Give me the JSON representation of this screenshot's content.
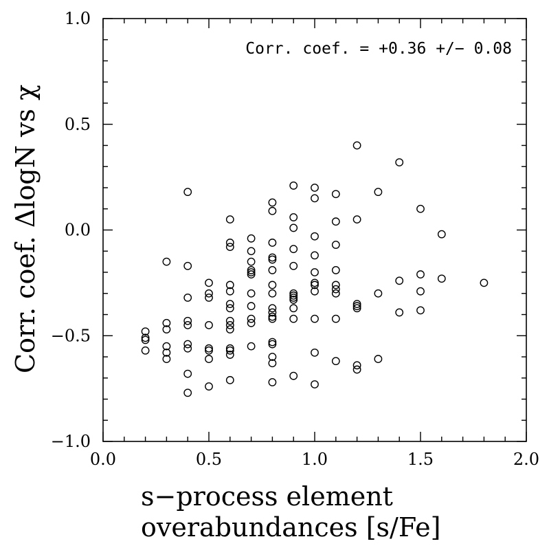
{
  "chart_data": {
    "type": "scatter",
    "xlabel_lines": [
      "s−process element",
      "overabundances [s/Fe]"
    ],
    "ylabel": "Corr. coef. ΔlogN vs χ",
    "annotation": "Corr. coef. = +0.36 +/− 0.08",
    "xlim": [
      0.0,
      2.0
    ],
    "ylim": [
      -1.0,
      1.0
    ],
    "xticks": [
      0.0,
      0.5,
      1.0,
      1.5,
      2.0
    ],
    "yticks": [
      -1.0,
      -0.5,
      0.0,
      0.5,
      1.0
    ],
    "xtick_labels": [
      "0.0",
      "0.5",
      "1.0",
      "1.5",
      "2.0"
    ],
    "ytick_labels": [
      "−1.0",
      "−0.5",
      "0.0",
      "0.5",
      "1.0"
    ],
    "marker": "open-circle",
    "grid": false,
    "points": [
      [
        0.2,
        -0.48
      ],
      [
        0.2,
        -0.52
      ],
      [
        0.2,
        -0.57
      ],
      [
        0.2,
        -0.51
      ],
      [
        0.3,
        -0.15
      ],
      [
        0.3,
        -0.44
      ],
      [
        0.3,
        -0.47
      ],
      [
        0.3,
        -0.55
      ],
      [
        0.3,
        -0.58
      ],
      [
        0.3,
        -0.61
      ],
      [
        0.4,
        0.18
      ],
      [
        0.4,
        -0.17
      ],
      [
        0.4,
        -0.32
      ],
      [
        0.4,
        -0.43
      ],
      [
        0.4,
        -0.45
      ],
      [
        0.4,
        -0.54
      ],
      [
        0.4,
        -0.56
      ],
      [
        0.4,
        -0.68
      ],
      [
        0.4,
        -0.77
      ],
      [
        0.5,
        -0.25
      ],
      [
        0.5,
        -0.3
      ],
      [
        0.5,
        -0.32
      ],
      [
        0.5,
        -0.45
      ],
      [
        0.5,
        -0.56
      ],
      [
        0.5,
        -0.57
      ],
      [
        0.5,
        -0.61
      ],
      [
        0.5,
        -0.74
      ],
      [
        0.6,
        0.05
      ],
      [
        0.6,
        -0.06
      ],
      [
        0.6,
        -0.08
      ],
      [
        0.6,
        -0.26
      ],
      [
        0.6,
        -0.29
      ],
      [
        0.6,
        -0.35
      ],
      [
        0.6,
        -0.37
      ],
      [
        0.6,
        -0.43
      ],
      [
        0.6,
        -0.45
      ],
      [
        0.6,
        -0.47
      ],
      [
        0.6,
        -0.56
      ],
      [
        0.6,
        -0.57
      ],
      [
        0.6,
        -0.59
      ],
      [
        0.6,
        -0.71
      ],
      [
        0.7,
        -0.04
      ],
      [
        0.7,
        -0.1
      ],
      [
        0.7,
        -0.15
      ],
      [
        0.7,
        -0.19
      ],
      [
        0.7,
        -0.2
      ],
      [
        0.7,
        -0.21
      ],
      [
        0.7,
        -0.3
      ],
      [
        0.7,
        -0.36
      ],
      [
        0.7,
        -0.42
      ],
      [
        0.7,
        -0.44
      ],
      [
        0.7,
        -0.55
      ],
      [
        0.8,
        0.13
      ],
      [
        0.8,
        0.09
      ],
      [
        0.8,
        -0.06
      ],
      [
        0.8,
        -0.13
      ],
      [
        0.8,
        -0.14
      ],
      [
        0.8,
        -0.19
      ],
      [
        0.8,
        -0.26
      ],
      [
        0.8,
        -0.3
      ],
      [
        0.8,
        -0.37
      ],
      [
        0.8,
        -0.39
      ],
      [
        0.8,
        -0.41
      ],
      [
        0.8,
        -0.42
      ],
      [
        0.8,
        -0.53
      ],
      [
        0.8,
        -0.54
      ],
      [
        0.8,
        -0.6
      ],
      [
        0.8,
        -0.63
      ],
      [
        0.8,
        -0.72
      ],
      [
        0.9,
        0.21
      ],
      [
        0.9,
        0.06
      ],
      [
        0.9,
        0.01
      ],
      [
        0.9,
        -0.09
      ],
      [
        0.9,
        -0.17
      ],
      [
        0.9,
        -0.3
      ],
      [
        0.9,
        -0.31
      ],
      [
        0.9,
        -0.32
      ],
      [
        0.9,
        -0.33
      ],
      [
        0.9,
        -0.37
      ],
      [
        0.9,
        -0.42
      ],
      [
        0.9,
        -0.69
      ],
      [
        1.0,
        0.2
      ],
      [
        1.0,
        0.15
      ],
      [
        1.0,
        -0.03
      ],
      [
        1.0,
        -0.12
      ],
      [
        1.0,
        -0.2
      ],
      [
        1.0,
        -0.25
      ],
      [
        1.0,
        -0.26
      ],
      [
        1.0,
        -0.29
      ],
      [
        1.0,
        -0.42
      ],
      [
        1.0,
        -0.58
      ],
      [
        1.0,
        -0.73
      ],
      [
        1.1,
        0.17
      ],
      [
        1.1,
        0.04
      ],
      [
        1.1,
        -0.07
      ],
      [
        1.1,
        -0.19
      ],
      [
        1.1,
        -0.26
      ],
      [
        1.1,
        -0.28
      ],
      [
        1.1,
        -0.3
      ],
      [
        1.1,
        -0.42
      ],
      [
        1.1,
        -0.62
      ],
      [
        1.2,
        0.4
      ],
      [
        1.2,
        0.05
      ],
      [
        1.2,
        -0.35
      ],
      [
        1.2,
        -0.36
      ],
      [
        1.2,
        -0.37
      ],
      [
        1.2,
        -0.64
      ],
      [
        1.2,
        -0.66
      ],
      [
        1.3,
        0.18
      ],
      [
        1.3,
        -0.3
      ],
      [
        1.3,
        -0.61
      ],
      [
        1.4,
        0.32
      ],
      [
        1.4,
        -0.24
      ],
      [
        1.4,
        -0.39
      ],
      [
        1.5,
        0.1
      ],
      [
        1.5,
        -0.21
      ],
      [
        1.5,
        -0.29
      ],
      [
        1.5,
        -0.38
      ],
      [
        1.6,
        -0.02
      ],
      [
        1.6,
        -0.23
      ],
      [
        1.8,
        -0.25
      ]
    ]
  }
}
